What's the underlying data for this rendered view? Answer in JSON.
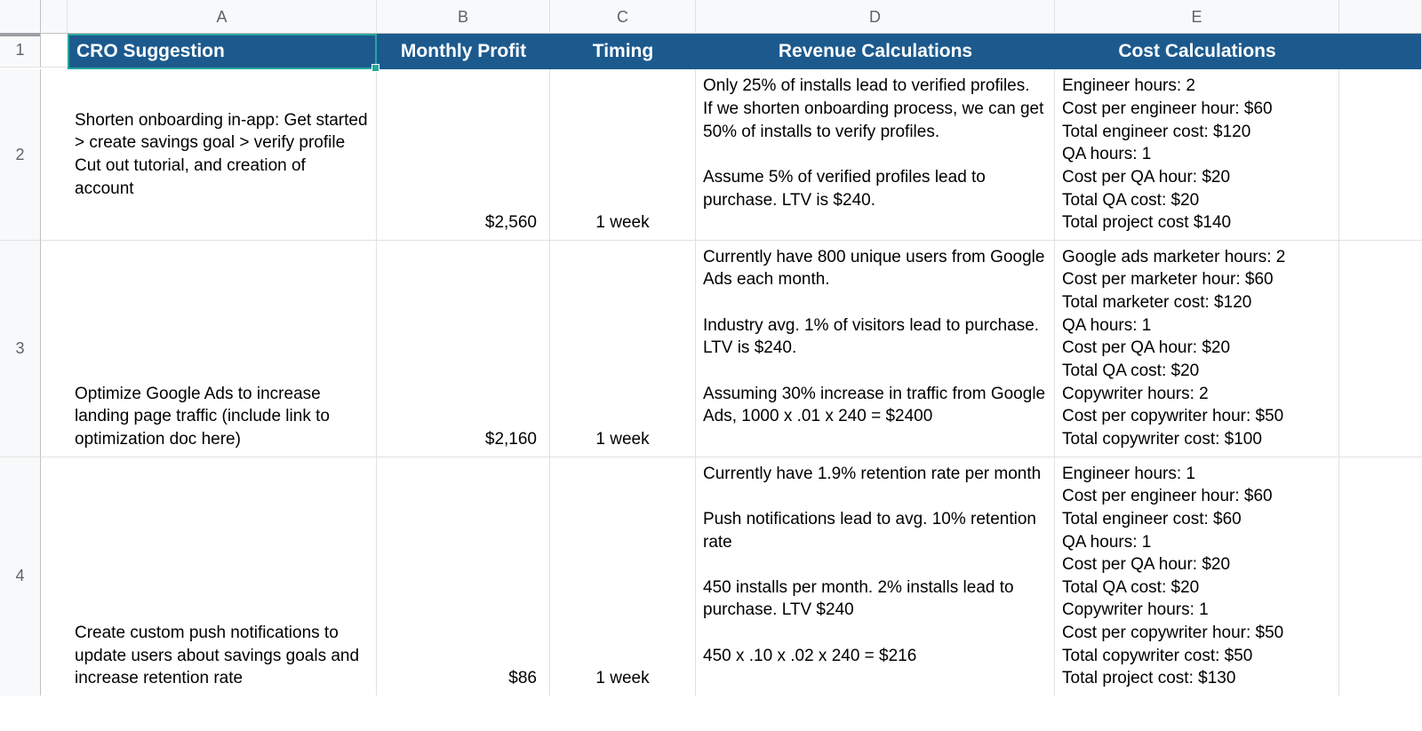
{
  "columns": {
    "labels": [
      "A",
      "B",
      "C",
      "D",
      "E"
    ]
  },
  "row_numbers": [
    1,
    2,
    3,
    4
  ],
  "header_row": {
    "a": "CRO Suggestion",
    "b": "Monthly Profit",
    "c": "Timing",
    "d": "Revenue Calculations",
    "e": "Cost Calculations"
  },
  "rows": [
    {
      "suggestion": "Shorten onboarding in-app: Get started > create savings goal > verify profile\nCut out tutorial, and creation of account",
      "profit": "$2,560",
      "timing": "1 week",
      "revenue": "Only 25% of installs lead to verified profiles.\nIf we shorten onboarding process, we can get 50% of installs to verify profiles.\n\nAssume 5% of verified profiles lead to purchase. LTV is $240.",
      "cost": "Engineer hours: 2\nCost per engineer hour: $60\nTotal engineer cost: $120\nQA hours: 1\nCost per QA hour: $20\nTotal QA cost: $20\nTotal project cost $140"
    },
    {
      "suggestion": "Optimize Google Ads to increase landing page traffic (include link to optimization doc here)",
      "profit": "$2,160",
      "timing": "1 week",
      "revenue": "Currently have 800 unique users from Google Ads each month.\n\nIndustry avg. 1% of visitors lead to purchase. LTV is $240.\n\nAssuming 30% increase in traffic from Google Ads, 1000 x .01 x 240 = $2400",
      "cost": "Google ads marketer hours: 2\nCost per marketer hour: $60\nTotal marketer cost: $120\nQA hours: 1\nCost per QA hour: $20\nTotal QA cost: $20\nCopywriter hours: 2\nCost per copywriter hour: $50\nTotal copywriter cost: $100"
    },
    {
      "suggestion": "Create custom push notifications to update users about savings goals and increase retention rate",
      "profit": "$86",
      "timing": "1 week",
      "revenue": "Currently have 1.9% retention rate per month\n\nPush notifications lead to avg. 10% retention rate\n\n450 installs per month. 2% installs lead to purchase. LTV $240\n\n450 x .10 x .02 x 240 = $216",
      "cost": "Engineer hours: 1\nCost per engineer hour: $60\nTotal engineer cost: $60\nQA hours: 1\nCost per QA hour: $20\nTotal QA cost: $20\nCopywriter hours: 1\nCost per copywriter hour: $50\nTotal copywriter cost: $50\nTotal project cost: $130"
    }
  ],
  "colors": {
    "header_bg": "#1c5a8e",
    "header_fg": "#ffffff",
    "selected_outline": "#26a69a",
    "grid_line": "#e1e1e1",
    "rowcol_bg": "#f8f9fa",
    "rowcol_fg": "#5f6368"
  }
}
